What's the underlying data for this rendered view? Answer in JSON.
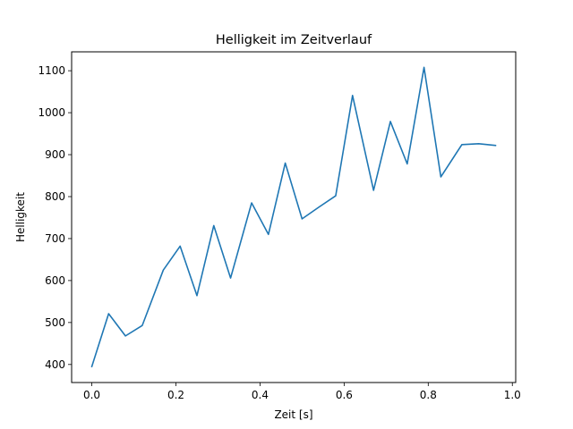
{
  "chart_data": {
    "type": "line",
    "title": "Helligkeit im Zeitverlauf",
    "xlabel": "Zeit [s]",
    "ylabel": "Helligkeit",
    "xlim": [
      -0.048,
      1.008
    ],
    "ylim": [
      357,
      1145
    ],
    "xticks": [
      0.0,
      0.2,
      0.4,
      0.6,
      0.8,
      1.0
    ],
    "xtick_labels": [
      "0.0",
      "0.2",
      "0.4",
      "0.6",
      "0.8",
      "1.0"
    ],
    "yticks": [
      400,
      500,
      600,
      700,
      800,
      900,
      1000,
      1100
    ],
    "ytick_labels": [
      "400",
      "500",
      "600",
      "700",
      "800",
      "900",
      "1000",
      "1100"
    ],
    "grid": false,
    "color": "#1f77b4",
    "series": [
      {
        "name": "Helligkeit",
        "x": [
          0.0,
          0.04,
          0.08,
          0.12,
          0.17,
          0.21,
          0.25,
          0.29,
          0.33,
          0.38,
          0.42,
          0.46,
          0.5,
          0.54,
          0.58,
          0.62,
          0.67,
          0.71,
          0.75,
          0.79,
          0.83,
          0.88,
          0.92,
          0.96
        ],
        "y": [
          395,
          521,
          468,
          493,
          625,
          682,
          564,
          731,
          606,
          785,
          710,
          880,
          747,
          775,
          802,
          1041,
          815,
          979,
          878,
          1108,
          847,
          924,
          926,
          922
        ]
      }
    ]
  }
}
